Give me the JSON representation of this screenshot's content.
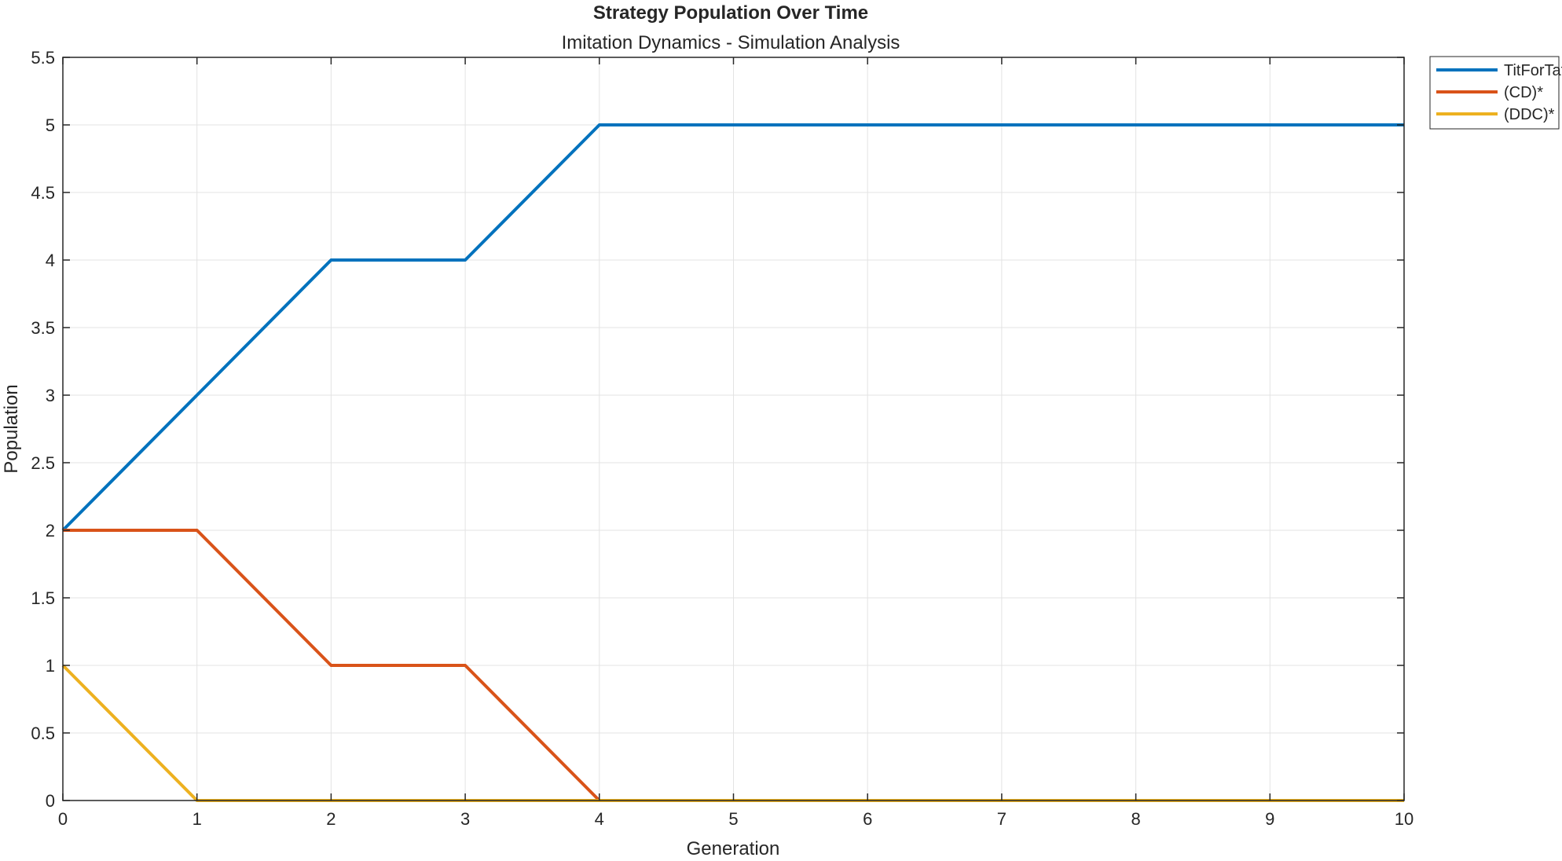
{
  "chart_data": {
    "type": "line",
    "title": "Strategy Population Over Time",
    "subtitle": "Imitation Dynamics - Simulation Analysis",
    "xlabel": "Generation",
    "ylabel": "Population",
    "xlim": [
      0,
      10
    ],
    "ylim": [
      0,
      5.5
    ],
    "xticks": [
      0,
      1,
      2,
      3,
      4,
      5,
      6,
      7,
      8,
      9,
      10
    ],
    "yticks": [
      0,
      0.5,
      1,
      1.5,
      2,
      2.5,
      3,
      3.5,
      4,
      4.5,
      5,
      5.5
    ],
    "xtick_labels": [
      "0",
      "1",
      "2",
      "3",
      "4",
      "5",
      "6",
      "7",
      "8",
      "9",
      "10"
    ],
    "ytick_labels": [
      "0",
      "0.5",
      "1",
      "1.5",
      "2",
      "2.5",
      "3",
      "3.5",
      "4",
      "4.5",
      "5",
      "5.5"
    ],
    "grid": true,
    "legend_position": "outside top-right",
    "x": [
      0,
      1,
      2,
      3,
      4,
      5,
      6,
      7,
      8,
      9,
      10
    ],
    "series": [
      {
        "name": "TitForTat",
        "color": "#0072BD",
        "values": [
          2,
          3,
          4,
          4,
          5,
          5,
          5,
          5,
          5,
          5,
          5
        ]
      },
      {
        "name": "(CD)*",
        "color": "#D95319",
        "values": [
          2,
          2,
          1,
          1,
          0,
          0,
          0,
          0,
          0,
          0,
          0
        ]
      },
      {
        "name": "(DDC)*",
        "color": "#EDB120",
        "values": [
          1,
          0,
          0,
          0,
          0,
          0,
          0,
          0,
          0,
          0,
          0
        ]
      }
    ]
  }
}
